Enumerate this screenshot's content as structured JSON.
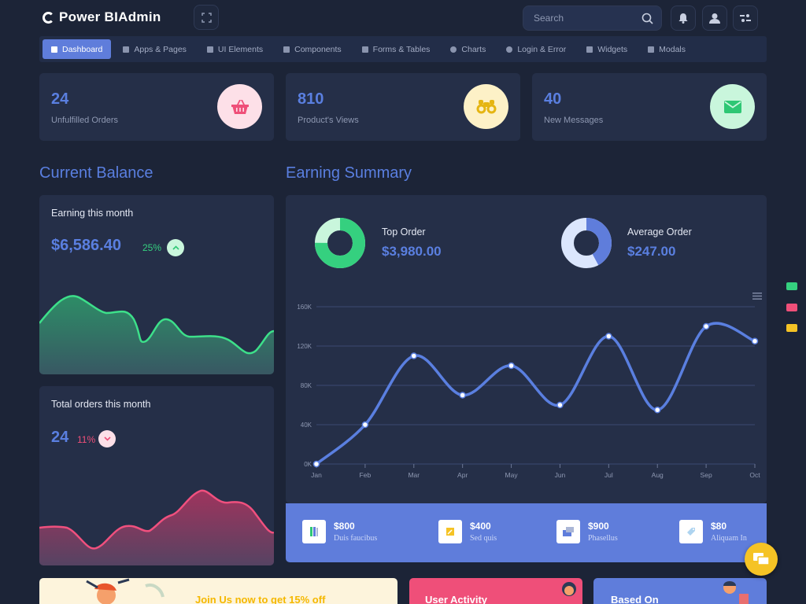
{
  "app": {
    "title": "Power BIAdmin"
  },
  "search": {
    "placeholder": "Search"
  },
  "nav": {
    "items": [
      {
        "label": "Dashboard",
        "icon": "dashboard-icon",
        "active": true
      },
      {
        "label": "Apps & Pages",
        "icon": "grid-icon"
      },
      {
        "label": "UI Elements",
        "icon": "edit-icon"
      },
      {
        "label": "Components",
        "icon": "brush-icon"
      },
      {
        "label": "Forms & Tables",
        "icon": "table-icon"
      },
      {
        "label": "Charts",
        "icon": "pie-icon"
      },
      {
        "label": "Login & Error",
        "icon": "login-icon"
      },
      {
        "label": "Widgets",
        "icon": "widgets-icon"
      },
      {
        "label": "Modals",
        "icon": "modals-icon"
      }
    ]
  },
  "stats": [
    {
      "value": "24",
      "label": "Unfulfilled Orders",
      "icon": "basket-icon",
      "bg": "#fde0e8",
      "fg": "#ef4f79"
    },
    {
      "value": "810",
      "label": "Product's Views",
      "icon": "binoculars-icon",
      "bg": "#fdf1c7",
      "fg": "#e5b512"
    },
    {
      "value": "40",
      "label": "New Messages",
      "icon": "envelope-icon",
      "bg": "#c9f6dc",
      "fg": "#2ec774"
    }
  ],
  "current_balance": {
    "title": "Current Balance",
    "earning": {
      "title": "Earning this month",
      "amount": "$6,586.40",
      "percent": "25%",
      "direction": "up"
    },
    "orders": {
      "title": "Total orders this month",
      "amount": "24",
      "percent": "11%",
      "direction": "down"
    }
  },
  "earning_summary": {
    "title": "Earning Summary",
    "top_order": {
      "label": "Top Order",
      "value": "$3,980.00",
      "fraction": 0.75
    },
    "average_order": {
      "label": "Average Order",
      "value": "$247.00",
      "fraction": 0.42
    }
  },
  "chart_data": {
    "type": "line",
    "categories": [
      "Jan",
      "Feb",
      "Mar",
      "Apr",
      "May",
      "Jun",
      "Jul",
      "Aug",
      "Sep",
      "Oct"
    ],
    "values": [
      0,
      40000,
      110000,
      70000,
      100000,
      60000,
      130000,
      55000,
      140000,
      125000
    ],
    "yticks": [
      "0K",
      "40K",
      "80K",
      "120K",
      "160K"
    ],
    "ylim": [
      0,
      160000
    ],
    "grid": true,
    "color": "#5a7fe0"
  },
  "summary_strip": [
    {
      "amount": "$800",
      "label": "Duis faucibus",
      "icon": "books-icon"
    },
    {
      "amount": "$400",
      "label": "Sed quis",
      "icon": "note-icon"
    },
    {
      "amount": "$900",
      "label": "Phasellus",
      "icon": "cards-icon"
    },
    {
      "amount": "$80",
      "label": "Aliquam In",
      "icon": "tag-icon"
    }
  ],
  "promo": {
    "title": "Join Us now to get 15% off"
  },
  "user_activity": {
    "title": "User Activity"
  },
  "based_on": {
    "title": "Based On"
  },
  "colors": {
    "background": "#1c2437",
    "card": "#252f48",
    "accent": "#5f7ddb",
    "green": "#35d07f",
    "pink": "#ef4f79"
  }
}
